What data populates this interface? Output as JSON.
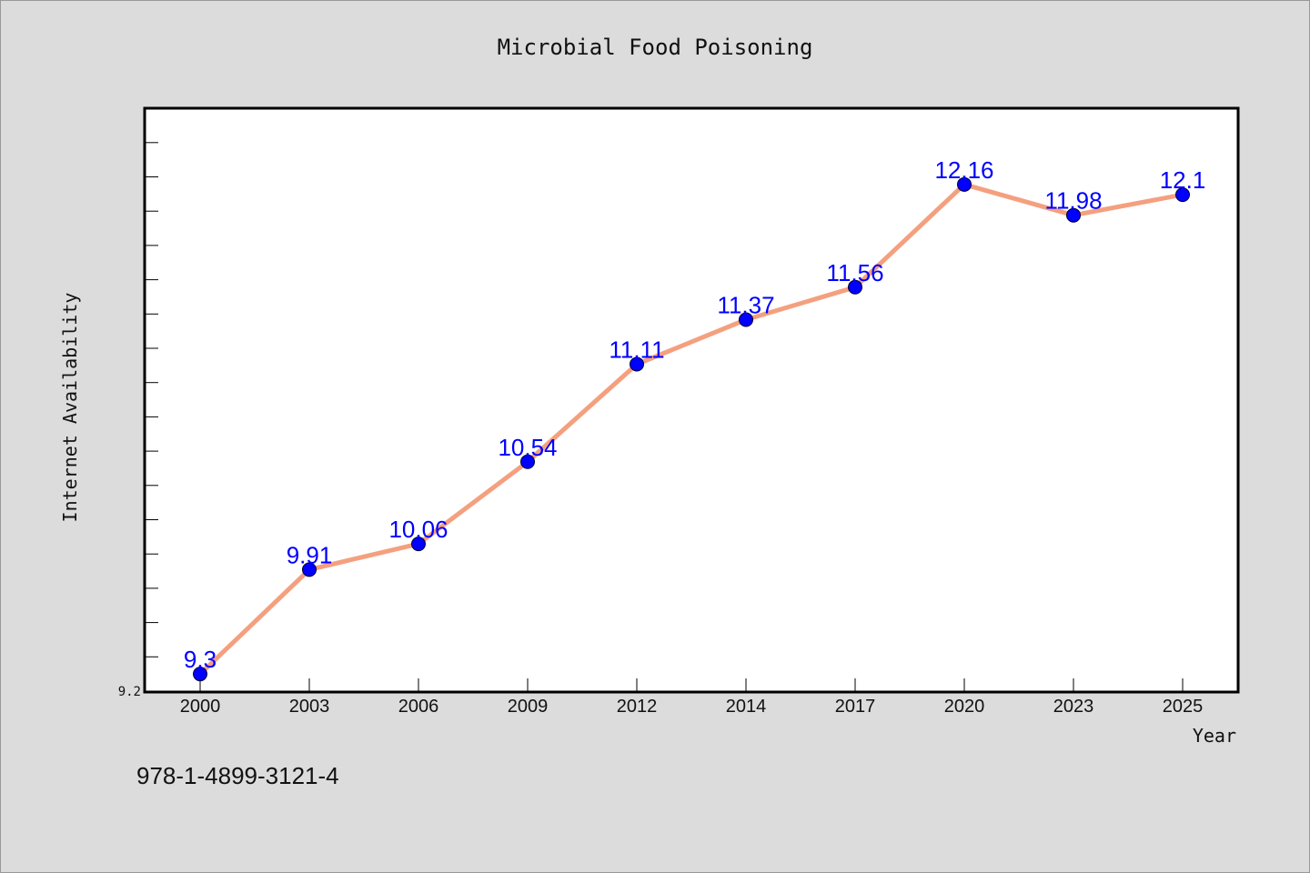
{
  "chart_data": {
    "type": "line",
    "title": "Microbial Food Poisoning",
    "xlabel": "Year",
    "ylabel": "Internet Availability",
    "categories": [
      "2000",
      "2003",
      "2006",
      "2009",
      "2012",
      "2014",
      "2017",
      "2020",
      "2023",
      "2025"
    ],
    "series": [
      {
        "values": [
          9.3,
          9.91,
          10.06,
          10.54,
          11.11,
          11.37,
          11.56,
          12.16,
          11.98,
          12.1
        ],
        "labels": [
          "9.3",
          "9.91",
          "10.06",
          "10.54",
          "11.11",
          "11.37",
          "11.56",
          "12.16",
          "11.98",
          "12.1"
        ]
      }
    ],
    "ylim": [
      9.2,
      12.6
    ],
    "yticks": [
      "9.2"
    ],
    "grid": false,
    "legend": "none",
    "colors": {
      "line": "#f4a07f",
      "marker": "#0000ff",
      "label": "#0000ff",
      "plot_background": "#ffffff",
      "figure_background": "#dcdcdc"
    }
  },
  "footer_text": "978-1-4899-3121-4"
}
